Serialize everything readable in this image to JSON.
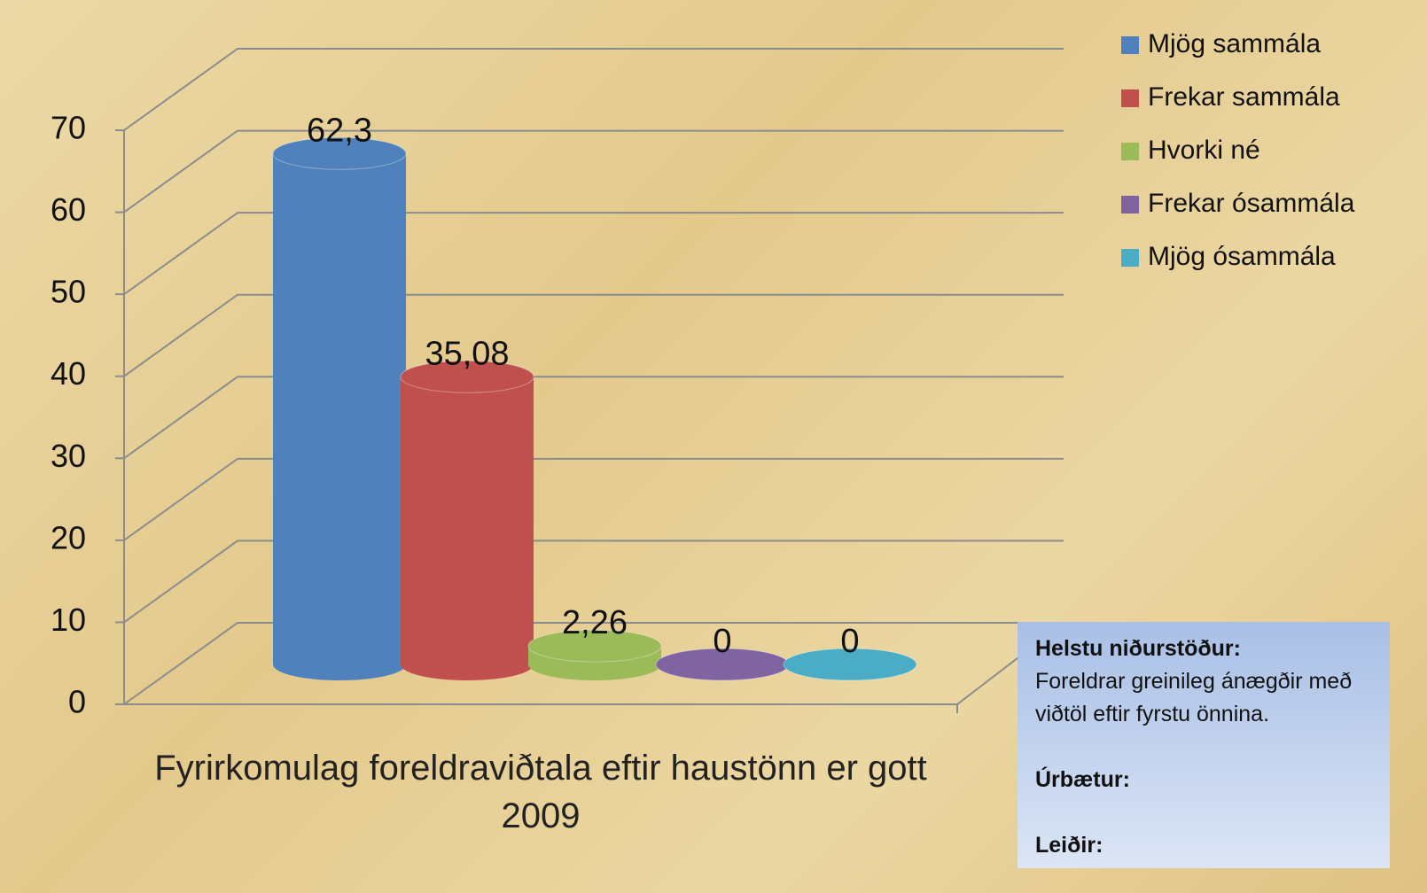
{
  "chart_data": {
    "type": "bar3d",
    "categories": [
      "Fyrirkomulag foreldraviðtala eftir haustönn er gott 2009"
    ],
    "series": [
      {
        "name": "Mjög sammála",
        "color": "#4f81bd",
        "values": [
          62.3
        ],
        "value_labels": [
          "62,3"
        ]
      },
      {
        "name": "Frekar sammála",
        "color": "#c0504d",
        "values": [
          35.08
        ],
        "value_labels": [
          "35,08"
        ]
      },
      {
        "name": "Hvorki né",
        "color": "#9bbb59",
        "values": [
          2.26
        ],
        "value_labels": [
          "2,26"
        ]
      },
      {
        "name": "Frekar ósammála",
        "color": "#8064a2",
        "values": [
          0
        ]
      },
      {
        "name": "Mjög ósammála",
        "color": "#4bacc6",
        "values": [
          0
        ]
      }
    ],
    "ylim": [
      0,
      70
    ],
    "yticks": [
      0,
      10,
      20,
      30,
      40,
      50,
      60,
      70
    ],
    "grid": true,
    "legend": "top-right"
  },
  "notes": {
    "heading": "Helstu niðurstöður:",
    "text": "Foreldrar greinileg ánægðir með viðtöl eftir fyrstu önnina.",
    "improvements": "Úrbætur:",
    "actions": "Leiðir:"
  }
}
